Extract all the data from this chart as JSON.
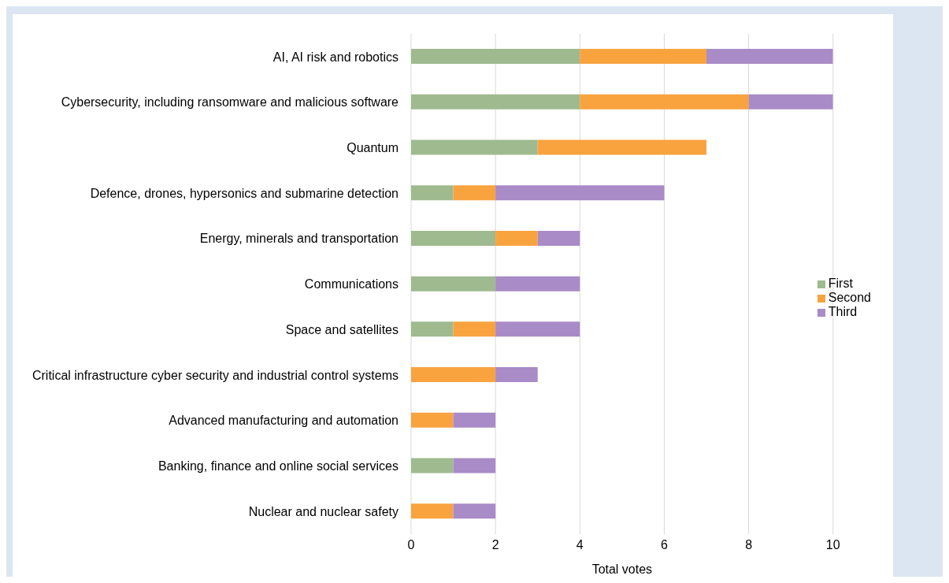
{
  "chart_data": {
    "type": "bar",
    "orientation": "horizontal",
    "stacked": true,
    "categories": [
      "AI, AI risk and robotics",
      "Cybersecurity, including ransomware and malicious software",
      "Quantum",
      "Defence, drones, hypersonics and submarine detection",
      "Energy, minerals and transportation",
      "Communications",
      "Space and satellites",
      "Critical infrastructure cyber security and industrial control systems",
      "Advanced manufacturing and automation",
      "Banking, finance and online social services",
      "Nuclear and nuclear safety"
    ],
    "series": [
      {
        "name": "First",
        "color": "#9fba8f",
        "values": [
          4,
          4,
          3,
          1,
          2,
          2,
          1,
          0,
          0,
          1,
          0
        ]
      },
      {
        "name": "Second",
        "color": "#f9a33f",
        "values": [
          3,
          4,
          4,
          1,
          1,
          0,
          1,
          2,
          1,
          0,
          1
        ]
      },
      {
        "name": "Third",
        "color": "#a98bc7",
        "values": [
          3,
          2,
          0,
          4,
          1,
          2,
          2,
          1,
          1,
          1,
          1
        ]
      }
    ],
    "xlabel": "Total votes",
    "xlim": [
      0,
      10
    ],
    "xticks": [
      0,
      2,
      4,
      6,
      8,
      10
    ],
    "grid": "x",
    "legend": "right"
  }
}
